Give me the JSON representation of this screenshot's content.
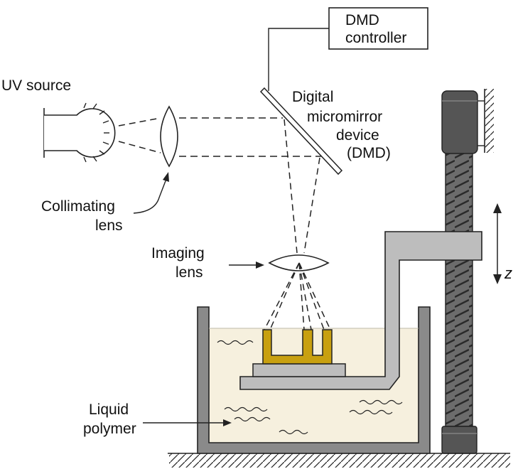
{
  "labels": {
    "dmd_controller": [
      "DMD",
      "controller"
    ],
    "uv_source": "UV source",
    "dmd": [
      "Digital",
      "micromirror",
      "device",
      "(DMD)"
    ],
    "collimating_lens": [
      "Collimating",
      "lens"
    ],
    "imaging_lens": [
      "Imaging",
      "lens"
    ],
    "z_axis": "z",
    "liquid_polymer": [
      "Liquid",
      "polymer"
    ]
  },
  "colors": {
    "resin": "#f6f0de",
    "part": "#c8a010",
    "tank_wall": "#8a8a8a",
    "platform": "#bdbdbd",
    "screw": "#666666",
    "screw_cap": "#555555"
  }
}
